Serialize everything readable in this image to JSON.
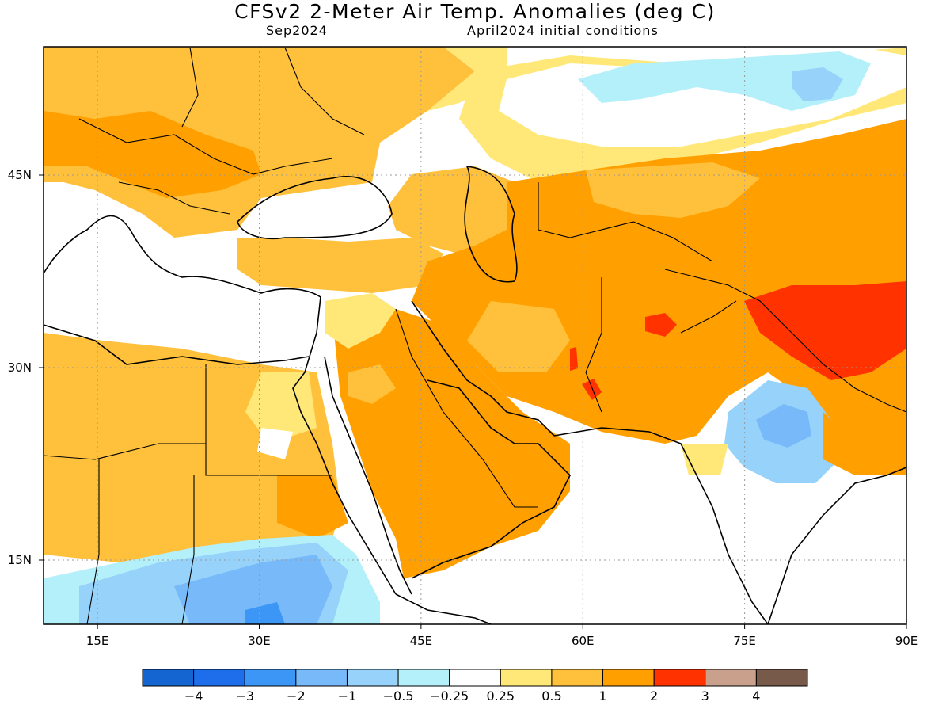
{
  "title": "CFSv2 2-Meter Air Temp. Anomalies (deg C)",
  "valid_month": "Sep2024",
  "init_conditions": "April2024 initial conditions",
  "map": {
    "lon_range": [
      10,
      90
    ],
    "lat_range": [
      10,
      55
    ],
    "lon_ticks": [
      {
        "value": 15,
        "label": "15E"
      },
      {
        "value": 30,
        "label": "30E"
      },
      {
        "value": 45,
        "label": "45E"
      },
      {
        "value": 60,
        "label": "60E"
      },
      {
        "value": 75,
        "label": "75E"
      },
      {
        "value": 90,
        "label": "90E"
      }
    ],
    "lat_ticks": [
      {
        "value": 45,
        "label": "45N"
      },
      {
        "value": 30,
        "label": "30N"
      },
      {
        "value": 15,
        "label": "15N"
      }
    ],
    "gridlines": "dotted",
    "region": "Europe / Middle East / Central Asia / South Asia"
  },
  "colorbar": {
    "colors": [
      "#1464d2",
      "#1e6eeb",
      "#3c96f5",
      "#78b9fa",
      "#96d2fa",
      "#b4f0fa",
      "#ffffff",
      "#ffe878",
      "#ffc03c",
      "#ffa000",
      "#ff3200",
      "#c8a08c",
      "#785a4b"
    ],
    "labels": [
      "-4",
      "-3",
      "-2",
      "-1",
      "-0.5",
      "-0.25",
      "0.25",
      "0.5",
      "1",
      "2",
      "3",
      "4"
    ]
  },
  "anomaly_regions": [
    {
      "name": "Caucasus / Anatolia / Europe",
      "level": "0.5 to 1 and 1 to 2"
    },
    {
      "name": "Arabian Peninsula",
      "level": "1 to 2"
    },
    {
      "name": "Iran / Afghanistan",
      "level": "1 to 2, spots 2 to 3"
    },
    {
      "name": "Tibet / western China",
      "level": "2 to 3"
    },
    {
      "name": "Central India",
      "level": "-0.5 to -1"
    },
    {
      "name": "Ethiopia / Sudan",
      "level": "-0.5 to -2"
    },
    {
      "name": "Kazakhstan",
      "level": "-0.25 to -1"
    }
  ]
}
